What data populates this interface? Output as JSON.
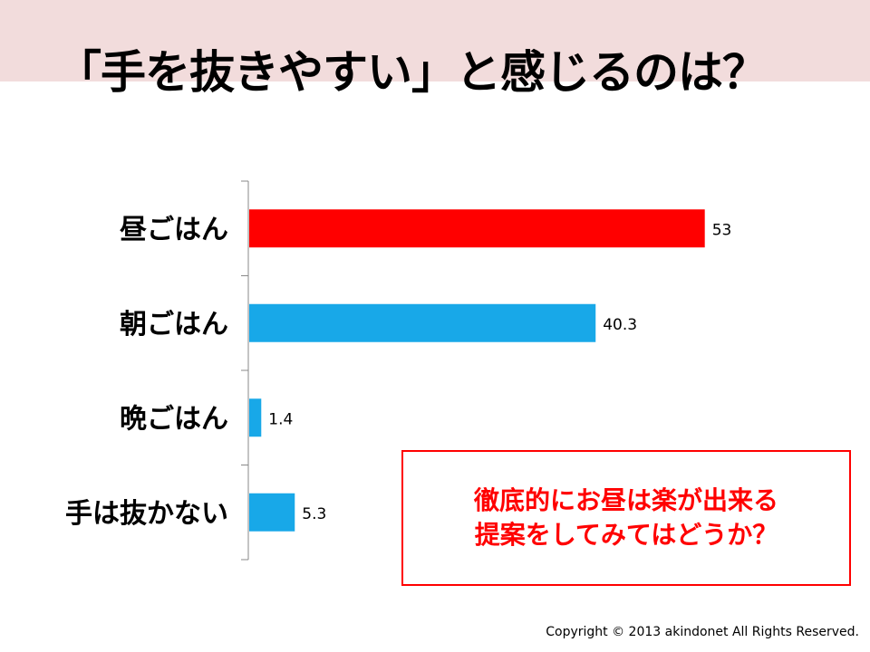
{
  "title": "「手を抜きやすい」と感じるのは？",
  "chart_data": {
    "type": "bar",
    "orientation": "horizontal",
    "categories": [
      "昼ごはん",
      "朝ごはん",
      "晩ごはん",
      "手は抜かない"
    ],
    "values": [
      53,
      40.3,
      1.4,
      5.3
    ],
    "value_labels": [
      "53",
      "40.3",
      "1.4",
      "5.3"
    ],
    "bar_colors": [
      "#ff0000",
      "#18a8e8",
      "#18a8e8",
      "#18a8e8"
    ],
    "xlim": [
      0,
      66
    ],
    "grid": false,
    "legend": "none"
  },
  "callout": {
    "line1": "徹底的にお昼は楽が出来る",
    "line2": "提案をしてみてはどうか？",
    "color": "#ff0000"
  },
  "footer": {
    "copyright": "Copyright © 2013 akindonet All Rights Reserved."
  },
  "colors": {
    "header_band": "#f2dcdc",
    "highlight": "#ff0000",
    "bar": "#18a8e8"
  }
}
